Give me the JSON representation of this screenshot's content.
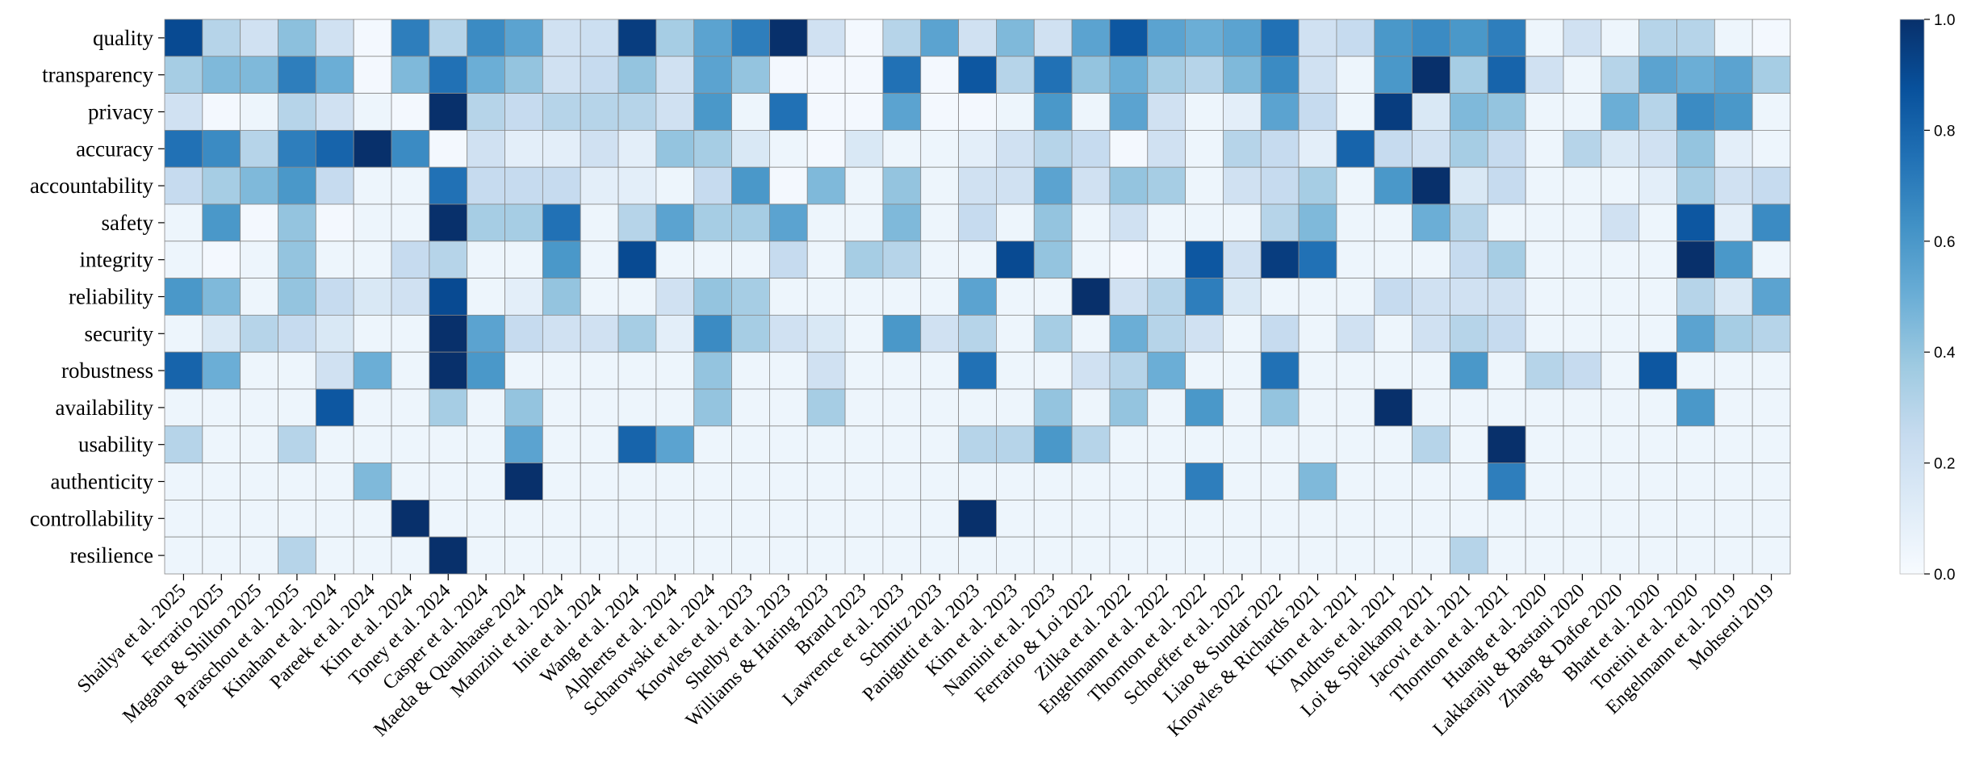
{
  "chart_data": {
    "type": "heatmap",
    "title": "",
    "xlabel": "",
    "ylabel": "",
    "rows": [
      "quality",
      "transparency",
      "privacy",
      "accuracy",
      "accountability",
      "safety",
      "integrity",
      "reliability",
      "security",
      "robustness",
      "availability",
      "usability",
      "authenticity",
      "controllability",
      "resilience"
    ],
    "columns": [
      "Shailya et al. 2025",
      "Ferrario 2025",
      "Magana & Shilton 2025",
      "Paraschou et al. 2025",
      "Kinahan et al. 2024",
      "Pareek et al. 2024",
      "Kim et al. 2024",
      "Toney et al. 2024",
      "Casper et al. 2024",
      "Maeda & Quanhaase 2024",
      "Manzini et al. 2024",
      "Inie et al. 2024",
      "Wang et al. 2024",
      "Alpherts et al. 2024",
      "Scharowski et al. 2024",
      "Knowles et al. 2023",
      "Shelby et al. 2023",
      "Williams & Haring 2023",
      "Brand 2023",
      "Lawrence et al. 2023",
      "Schmitz 2023",
      "Panigutti et al. 2023",
      "Kim et al. 2023",
      "Nannini et al. 2023",
      "Ferrario & Loi 2022",
      "Zilka et al. 2022",
      "Engelmann et al. 2022",
      "Thornton et al. 2022",
      "Schoeffer et al. 2022",
      "Liao & Sundar 2022",
      "Knowles & Richards 2021",
      "Kim et al. 2021",
      "Andrus et al. 2021",
      "Loi & Spielkamp 2021",
      "Jacovi et al. 2021",
      "Thornton et al. 2021",
      "Huang et al. 2020",
      "Lakkaraju & Bastani 2020",
      "Zhang & Dafoe 2020",
      "Bhatt et al. 2020",
      "Toreini et al. 2020",
      "Engelmann et al. 2019",
      "Mohseni 2019"
    ],
    "values": [
      [
        0.9,
        0.3,
        0.2,
        0.42,
        0.2,
        0.02,
        0.7,
        0.3,
        0.65,
        0.55,
        0.2,
        0.22,
        0.95,
        0.35,
        0.55,
        0.7,
        1.0,
        0.2,
        0.02,
        0.3,
        0.55,
        0.2,
        0.45,
        0.2,
        0.55,
        0.85,
        0.55,
        0.5,
        0.55,
        0.75,
        0.2,
        0.25,
        0.6,
        0.65,
        0.6,
        0.7,
        0.05,
        0.2,
        0.05,
        0.3,
        0.3,
        0.05,
        0.02
      ],
      [
        0.35,
        0.45,
        0.45,
        0.7,
        0.5,
        0.02,
        0.45,
        0.75,
        0.5,
        0.4,
        0.2,
        0.25,
        0.4,
        0.2,
        0.55,
        0.4,
        0.02,
        0.02,
        0.02,
        0.75,
        0.02,
        0.85,
        0.3,
        0.75,
        0.4,
        0.5,
        0.35,
        0.3,
        0.45,
        0.65,
        0.2,
        0.05,
        0.6,
        1.0,
        0.35,
        0.8,
        0.2,
        0.05,
        0.3,
        0.55,
        0.5,
        0.55,
        0.35
      ],
      [
        0.2,
        0.02,
        0.05,
        0.3,
        0.2,
        0.05,
        0.02,
        1.0,
        0.3,
        0.25,
        0.3,
        0.3,
        0.3,
        0.2,
        0.6,
        0.05,
        0.75,
        0.02,
        0.02,
        0.55,
        0.02,
        0.02,
        0.05,
        0.6,
        0.05,
        0.55,
        0.2,
        0.05,
        0.1,
        0.55,
        0.25,
        0.05,
        0.95,
        0.15,
        0.45,
        0.4,
        0.05,
        0.05,
        0.5,
        0.3,
        0.65,
        0.6,
        0.05
      ],
      [
        0.75,
        0.65,
        0.3,
        0.7,
        0.8,
        1.0,
        0.65,
        0.02,
        0.2,
        0.1,
        0.1,
        0.2,
        0.1,
        0.4,
        0.35,
        0.15,
        0.05,
        0.02,
        0.15,
        0.05,
        0.05,
        0.1,
        0.2,
        0.3,
        0.25,
        0.02,
        0.2,
        0.05,
        0.3,
        0.25,
        0.1,
        0.8,
        0.25,
        0.2,
        0.35,
        0.25,
        0.05,
        0.3,
        0.15,
        0.2,
        0.4,
        0.1,
        0.05
      ],
      [
        0.25,
        0.35,
        0.45,
        0.6,
        0.25,
        0.05,
        0.05,
        0.75,
        0.25,
        0.25,
        0.25,
        0.1,
        0.1,
        0.05,
        0.25,
        0.6,
        0.02,
        0.45,
        0.05,
        0.4,
        0.05,
        0.2,
        0.2,
        0.55,
        0.2,
        0.4,
        0.35,
        0.05,
        0.2,
        0.25,
        0.35,
        0.05,
        0.6,
        1.0,
        0.15,
        0.25,
        0.05,
        0.05,
        0.05,
        0.1,
        0.35,
        0.2,
        0.25
      ],
      [
        0.05,
        0.6,
        0.02,
        0.4,
        0.02,
        0.05,
        0.05,
        1.0,
        0.35,
        0.35,
        0.75,
        0.05,
        0.3,
        0.55,
        0.35,
        0.35,
        0.55,
        0.05,
        0.05,
        0.45,
        0.05,
        0.25,
        0.05,
        0.4,
        0.05,
        0.2,
        0.05,
        0.05,
        0.05,
        0.3,
        0.45,
        0.05,
        0.05,
        0.5,
        0.3,
        0.05,
        0.05,
        0.05,
        0.2,
        0.05,
        0.85,
        0.1,
        0.65
      ],
      [
        0.05,
        0.02,
        0.05,
        0.4,
        0.05,
        0.05,
        0.25,
        0.3,
        0.05,
        0.05,
        0.6,
        0.05,
        0.9,
        0.05,
        0.05,
        0.05,
        0.25,
        0.05,
        0.35,
        0.3,
        0.05,
        0.05,
        0.9,
        0.4,
        0.05,
        0.02,
        0.05,
        0.85,
        0.2,
        0.95,
        0.75,
        0.05,
        0.05,
        0.05,
        0.25,
        0.35,
        0.05,
        0.05,
        0.05,
        0.05,
        1.0,
        0.6,
        0.05
      ],
      [
        0.6,
        0.45,
        0.05,
        0.4,
        0.25,
        0.15,
        0.2,
        0.9,
        0.05,
        0.1,
        0.4,
        0.05,
        0.05,
        0.2,
        0.4,
        0.35,
        0.05,
        0.05,
        0.05,
        0.05,
        0.05,
        0.55,
        0.05,
        0.05,
        1.0,
        0.2,
        0.3,
        0.7,
        0.15,
        0.05,
        0.05,
        0.05,
        0.25,
        0.2,
        0.2,
        0.2,
        0.05,
        0.05,
        0.05,
        0.05,
        0.3,
        0.15,
        0.55
      ],
      [
        0.05,
        0.15,
        0.3,
        0.25,
        0.15,
        0.05,
        0.05,
        1.0,
        0.55,
        0.25,
        0.2,
        0.2,
        0.35,
        0.1,
        0.65,
        0.35,
        0.2,
        0.15,
        0.05,
        0.6,
        0.2,
        0.3,
        0.05,
        0.35,
        0.05,
        0.5,
        0.3,
        0.2,
        0.05,
        0.25,
        0.05,
        0.2,
        0.05,
        0.2,
        0.3,
        0.25,
        0.05,
        0.05,
        0.05,
        0.05,
        0.55,
        0.35,
        0.3
      ],
      [
        0.8,
        0.5,
        0.05,
        0.05,
        0.2,
        0.5,
        0.05,
        1.0,
        0.6,
        0.05,
        0.05,
        0.05,
        0.05,
        0.05,
        0.4,
        0.05,
        0.05,
        0.2,
        0.05,
        0.05,
        0.05,
        0.75,
        0.05,
        0.05,
        0.2,
        0.3,
        0.5,
        0.05,
        0.05,
        0.75,
        0.05,
        0.05,
        0.05,
        0.05,
        0.6,
        0.05,
        0.3,
        0.25,
        0.05,
        0.85,
        0.05,
        0.05,
        0.05
      ],
      [
        0.05,
        0.05,
        0.05,
        0.05,
        0.85,
        0.05,
        0.05,
        0.35,
        0.05,
        0.4,
        0.05,
        0.05,
        0.05,
        0.05,
        0.4,
        0.05,
        0.05,
        0.35,
        0.05,
        0.05,
        0.05,
        0.05,
        0.05,
        0.4,
        0.05,
        0.4,
        0.05,
        0.6,
        0.05,
        0.4,
        0.05,
        0.05,
        1.0,
        0.05,
        0.05,
        0.05,
        0.05,
        0.05,
        0.05,
        0.05,
        0.6,
        0.05,
        0.05
      ],
      [
        0.3,
        0.05,
        0.05,
        0.3,
        0.05,
        0.05,
        0.05,
        0.05,
        0.05,
        0.55,
        0.05,
        0.05,
        0.8,
        0.55,
        0.05,
        0.05,
        0.05,
        0.05,
        0.05,
        0.05,
        0.05,
        0.3,
        0.3,
        0.6,
        0.3,
        0.05,
        0.05,
        0.05,
        0.05,
        0.05,
        0.05,
        0.05,
        0.05,
        0.3,
        0.05,
        1.0,
        0.05,
        0.05,
        0.05,
        0.05,
        0.05,
        0.05,
        0.05
      ],
      [
        0.05,
        0.05,
        0.05,
        0.05,
        0.05,
        0.45,
        0.05,
        0.05,
        0.05,
        1.0,
        0.05,
        0.05,
        0.05,
        0.05,
        0.05,
        0.05,
        0.05,
        0.05,
        0.05,
        0.05,
        0.05,
        0.05,
        0.05,
        0.05,
        0.05,
        0.05,
        0.05,
        0.7,
        0.05,
        0.05,
        0.45,
        0.05,
        0.05,
        0.05,
        0.05,
        0.7,
        0.05,
        0.05,
        0.05,
        0.05,
        0.05,
        0.05,
        0.05
      ],
      [
        0.05,
        0.05,
        0.05,
        0.05,
        0.05,
        0.05,
        1.0,
        0.05,
        0.05,
        0.05,
        0.05,
        0.05,
        0.05,
        0.05,
        0.05,
        0.05,
        0.05,
        0.05,
        0.05,
        0.05,
        0.05,
        1.0,
        0.05,
        0.05,
        0.05,
        0.05,
        0.05,
        0.05,
        0.05,
        0.05,
        0.05,
        0.05,
        0.05,
        0.05,
        0.05,
        0.05,
        0.05,
        0.05,
        0.05,
        0.05,
        0.05,
        0.05,
        0.05
      ],
      [
        0.05,
        0.05,
        0.05,
        0.3,
        0.05,
        0.05,
        0.05,
        1.0,
        0.05,
        0.05,
        0.05,
        0.05,
        0.05,
        0.05,
        0.05,
        0.05,
        0.05,
        0.05,
        0.05,
        0.05,
        0.05,
        0.05,
        0.05,
        0.05,
        0.05,
        0.05,
        0.05,
        0.05,
        0.05,
        0.05,
        0.05,
        0.05,
        0.05,
        0.05,
        0.3,
        0.05,
        0.05,
        0.05,
        0.05,
        0.05,
        0.05,
        0.05,
        0.05
      ]
    ],
    "colorbar": {
      "range": [
        0.0,
        1.0
      ],
      "ticks": [
        "0.0",
        "0.2",
        "0.4",
        "0.6",
        "0.8",
        "1.0"
      ],
      "colormap": "Blues"
    },
    "colors": {
      "low": "#f7fbff",
      "high": "#08306b"
    },
    "grid": true,
    "legend": "colorbar-right"
  }
}
